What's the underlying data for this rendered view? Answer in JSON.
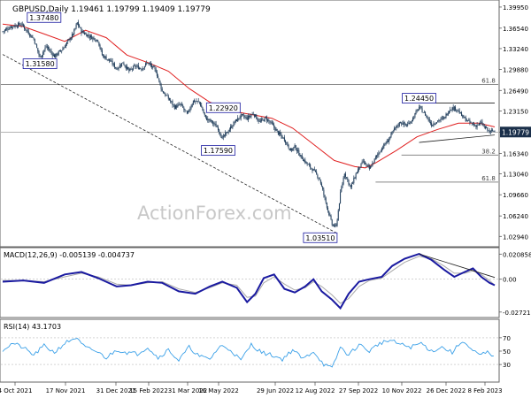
{
  "colors": {
    "candle": "#1f3c5a",
    "ma": "#e02020",
    "macd_line": "#1a1aa0",
    "macd_signal": "#a9a9a9",
    "rsi": "#3aa0e8",
    "ref_line": "#888888",
    "label_border": "#1a1aa0",
    "price_tag_bg": "#1a2f4a",
    "watermark": "#c8c8c8"
  },
  "chart_data": [
    {
      "type": "candlestick",
      "title": "GBPUSD,Daily  1.19461 1.19799 1.19409 1.19779",
      "watermark": "ActionForex.com",
      "x_labels": [
        "4 Oct 2021",
        "17 Nov 2021",
        "31 Dec 2021",
        "15 Feb 2022",
        "31 Mar 2022",
        "16 May 2022",
        "29 Jun 2022",
        "12 Aug 2022",
        "27 Sep 2022",
        "10 Nov 2022",
        "26 Dec 2022",
        "8 Feb 2023"
      ],
      "y_ticks": [
        "1.39950",
        "1.36540",
        "1.33240",
        "1.29880",
        "1.26490",
        "1.23150",
        "1.19779",
        "1.16340",
        "1.13040",
        "1.09660",
        "1.06240",
        "1.02940"
      ],
      "ylim": [
        1.0155,
        1.408
      ],
      "current_price": "1.19779",
      "close_path": [
        [
          0,
          1.36
        ],
        [
          8,
          1.368
        ],
        [
          18,
          1.372
        ],
        [
          30,
          1.348
        ],
        [
          36,
          1.318
        ],
        [
          42,
          1.336
        ],
        [
          50,
          1.32
        ],
        [
          58,
          1.332
        ],
        [
          68,
          1.356
        ],
        [
          72,
          1.374
        ],
        [
          76,
          1.36
        ],
        [
          84,
          1.352
        ],
        [
          92,
          1.346
        ],
        [
          96,
          1.322
        ],
        [
          104,
          1.312
        ],
        [
          110,
          1.3
        ],
        [
          116,
          1.31
        ],
        [
          122,
          1.296
        ],
        [
          128,
          1.304
        ],
        [
          134,
          1.3
        ],
        [
          140,
          1.31
        ],
        [
          148,
          1.296
        ],
        [
          154,
          1.264
        ],
        [
          160,
          1.252
        ],
        [
          166,
          1.238
        ],
        [
          172,
          1.242
        ],
        [
          178,
          1.226
        ],
        [
          184,
          1.248
        ],
        [
          190,
          1.246
        ],
        [
          196,
          1.22
        ],
        [
          202,
          1.214
        ],
        [
          208,
          1.204
        ],
        [
          212,
          1.187
        ],
        [
          218,
          1.2
        ],
        [
          224,
          1.214
        ],
        [
          230,
          1.224
        ],
        [
          236,
          1.22
        ],
        [
          242,
          1.228
        ],
        [
          248,
          1.214
        ],
        [
          254,
          1.22
        ],
        [
          260,
          1.21
        ],
        [
          266,
          1.196
        ],
        [
          272,
          1.186
        ],
        [
          278,
          1.168
        ],
        [
          282,
          1.174
        ],
        [
          288,
          1.158
        ],
        [
          294,
          1.146
        ],
        [
          300,
          1.136
        ],
        [
          306,
          1.122
        ],
        [
          312,
          1.084
        ],
        [
          318,
          1.048
        ],
        [
          322,
          1.045
        ],
        [
          326,
          1.098
        ],
        [
          330,
          1.132
        ],
        [
          336,
          1.108
        ],
        [
          342,
          1.134
        ],
        [
          348,
          1.15
        ],
        [
          354,
          1.138
        ],
        [
          360,
          1.156
        ],
        [
          366,
          1.172
        ],
        [
          372,
          1.184
        ],
        [
          378,
          1.202
        ],
        [
          384,
          1.214
        ],
        [
          390,
          1.208
        ],
        [
          396,
          1.22
        ],
        [
          402,
          1.238
        ],
        [
          408,
          1.226
        ],
        [
          414,
          1.21
        ],
        [
          420,
          1.216
        ],
        [
          426,
          1.22
        ],
        [
          432,
          1.236
        ],
        [
          438,
          1.236
        ],
        [
          444,
          1.222
        ],
        [
          450,
          1.214
        ],
        [
          456,
          1.208
        ],
        [
          462,
          1.212
        ],
        [
          466,
          1.204
        ],
        [
          470,
          1.198
        ],
        [
          475,
          1.2001
        ]
      ],
      "moving_average": [
        [
          0,
          1.372
        ],
        [
          20,
          1.368
        ],
        [
          40,
          1.356
        ],
        [
          60,
          1.344
        ],
        [
          80,
          1.362
        ],
        [
          100,
          1.35
        ],
        [
          120,
          1.322
        ],
        [
          140,
          1.31
        ],
        [
          160,
          1.296
        ],
        [
          180,
          1.268
        ],
        [
          200,
          1.246
        ],
        [
          220,
          1.232
        ],
        [
          240,
          1.226
        ],
        [
          260,
          1.22
        ],
        [
          280,
          1.204
        ],
        [
          300,
          1.178
        ],
        [
          320,
          1.152
        ],
        [
          340,
          1.142
        ],
        [
          350,
          1.14
        ],
        [
          360,
          1.148
        ],
        [
          380,
          1.168
        ],
        [
          400,
          1.19
        ],
        [
          420,
          1.202
        ],
        [
          440,
          1.212
        ],
        [
          460,
          1.212
        ],
        [
          475,
          1.206
        ]
      ],
      "annotations": [
        {
          "text": "1.37480",
          "x": 40,
          "value": 1.3748
        },
        {
          "text": "1.31580",
          "x": 36,
          "value": 1.3158
        },
        {
          "text": "1.22920",
          "x": 213,
          "value": 1.2292
        },
        {
          "text": "1.17590",
          "x": 208,
          "value": 1.1759
        },
        {
          "text": "1.24450",
          "x": 402,
          "value": 1.2445
        },
        {
          "text": "1.03510",
          "x": 322,
          "value": 1.0351
        }
      ],
      "fib_levels": [
        {
          "label": "61.8",
          "value": 1.2745
        },
        {
          "label": "38.2",
          "value": 1.1605
        },
        {
          "label": "61.8",
          "value": 1.117
        }
      ],
      "trendlines": [
        {
          "style": "dashed",
          "from": [
            0,
            1.323
          ],
          "to": [
            322,
            1.0351
          ]
        },
        {
          "style": "solid",
          "from": [
            402,
            1.2445
          ],
          "to": [
            475,
            1.2445
          ]
        },
        {
          "style": "solid",
          "from": [
            402,
            1.181
          ],
          "to": [
            475,
            1.193
          ]
        }
      ]
    },
    {
      "type": "line",
      "title": "MACD(12,26,9) -0.005139 -0.004737",
      "y_ticks": [
        "0.020858",
        "0.00",
        "-0.027213"
      ],
      "ylim": [
        -0.031,
        0.024
      ],
      "series": [
        {
          "name": "MACD",
          "values": [
            [
              0,
              -0.002
            ],
            [
              20,
              -0.001
            ],
            [
              40,
              -0.003
            ],
            [
              60,
              0.004
            ],
            [
              76,
              0.006
            ],
            [
              92,
              0.001
            ],
            [
              110,
              -0.006
            ],
            [
              124,
              -0.005
            ],
            [
              140,
              -0.002
            ],
            [
              154,
              -0.003
            ],
            [
              170,
              -0.01
            ],
            [
              186,
              -0.012
            ],
            [
              200,
              -0.006
            ],
            [
              212,
              -0.002
            ],
            [
              226,
              -0.007
            ],
            [
              236,
              -0.019
            ],
            [
              244,
              -0.012
            ],
            [
              252,
              0.001
            ],
            [
              262,
              0.004
            ],
            [
              272,
              -0.008
            ],
            [
              282,
              -0.011
            ],
            [
              292,
              -0.006
            ],
            [
              300,
              0.0
            ],
            [
              308,
              -0.01
            ],
            [
              318,
              -0.017
            ],
            [
              326,
              -0.024
            ],
            [
              334,
              -0.012
            ],
            [
              344,
              -0.002
            ],
            [
              354,
              0.0
            ],
            [
              366,
              0.002
            ],
            [
              376,
              0.011
            ],
            [
              388,
              0.017
            ],
            [
              402,
              0.021
            ],
            [
              414,
              0.016
            ],
            [
              426,
              0.008
            ],
            [
              436,
              0.002
            ],
            [
              446,
              0.006
            ],
            [
              454,
              0.009
            ],
            [
              462,
              0.002
            ],
            [
              470,
              -0.003
            ],
            [
              475,
              -0.005
            ]
          ]
        },
        {
          "name": "Signal",
          "values": [
            [
              0,
              -0.001
            ],
            [
              20,
              -0.001
            ],
            [
              40,
              -0.002
            ],
            [
              60,
              0.002
            ],
            [
              76,
              0.005
            ],
            [
              92,
              0.002
            ],
            [
              110,
              -0.004
            ],
            [
              124,
              -0.005
            ],
            [
              140,
              -0.003
            ],
            [
              154,
              -0.002
            ],
            [
              170,
              -0.008
            ],
            [
              186,
              -0.011
            ],
            [
              200,
              -0.007
            ],
            [
              212,
              -0.003
            ],
            [
              226,
              -0.005
            ],
            [
              236,
              -0.015
            ],
            [
              244,
              -0.014
            ],
            [
              252,
              -0.003
            ],
            [
              262,
              0.002
            ],
            [
              272,
              -0.004
            ],
            [
              282,
              -0.009
            ],
            [
              292,
              -0.007
            ],
            [
              300,
              -0.002
            ],
            [
              308,
              -0.006
            ],
            [
              318,
              -0.013
            ],
            [
              326,
              -0.02
            ],
            [
              334,
              -0.016
            ],
            [
              344,
              -0.006
            ],
            [
              354,
              -0.001
            ],
            [
              366,
              0.001
            ],
            [
              376,
              0.007
            ],
            [
              388,
              0.014
            ],
            [
              402,
              0.019
            ],
            [
              414,
              0.017
            ],
            [
              426,
              0.011
            ],
            [
              436,
              0.005
            ],
            [
              446,
              0.005
            ],
            [
              454,
              0.007
            ],
            [
              462,
              0.004
            ],
            [
              470,
              -0.001
            ],
            [
              475,
              -0.005
            ]
          ]
        }
      ],
      "trendline": {
        "from": [
          402,
          0.021
        ],
        "to": [
          475,
          0.0015
        ]
      }
    },
    {
      "type": "line",
      "title": "RSI(14) 43.1703",
      "y_ticks": [
        "70",
        "50",
        "30"
      ],
      "ylim": [
        5,
        95
      ],
      "series": [
        {
          "name": "RSI",
          "values": [
            [
              0,
              52
            ],
            [
              10,
              62
            ],
            [
              20,
              55
            ],
            [
              30,
              44
            ],
            [
              40,
              58
            ],
            [
              50,
              48
            ],
            [
              60,
              62
            ],
            [
              70,
              70
            ],
            [
              80,
              55
            ],
            [
              90,
              50
            ],
            [
              100,
              40
            ],
            [
              110,
              52
            ],
            [
              120,
              48
            ],
            [
              130,
              46
            ],
            [
              140,
              56
            ],
            [
              150,
              40
            ],
            [
              160,
              52
            ],
            [
              170,
              36
            ],
            [
              180,
              56
            ],
            [
              190,
              42
            ],
            [
              200,
              38
            ],
            [
              210,
              58
            ],
            [
              220,
              52
            ],
            [
              230,
              36
            ],
            [
              240,
              60
            ],
            [
              250,
              48
            ],
            [
              260,
              44
            ],
            [
              270,
              38
            ],
            [
              280,
              52
            ],
            [
              290,
              38
            ],
            [
              300,
              50
            ],
            [
              310,
              30
            ],
            [
              318,
              24
            ],
            [
              326,
              56
            ],
            [
              334,
              44
            ],
            [
              344,
              60
            ],
            [
              354,
              50
            ],
            [
              364,
              62
            ],
            [
              374,
              66
            ],
            [
              384,
              60
            ],
            [
              394,
              56
            ],
            [
              404,
              62
            ],
            [
              414,
              50
            ],
            [
              424,
              56
            ],
            [
              434,
              48
            ],
            [
              444,
              66
            ],
            [
              452,
              52
            ],
            [
              460,
              44
            ],
            [
              468,
              48
            ],
            [
              475,
              43
            ]
          ]
        }
      ]
    }
  ]
}
